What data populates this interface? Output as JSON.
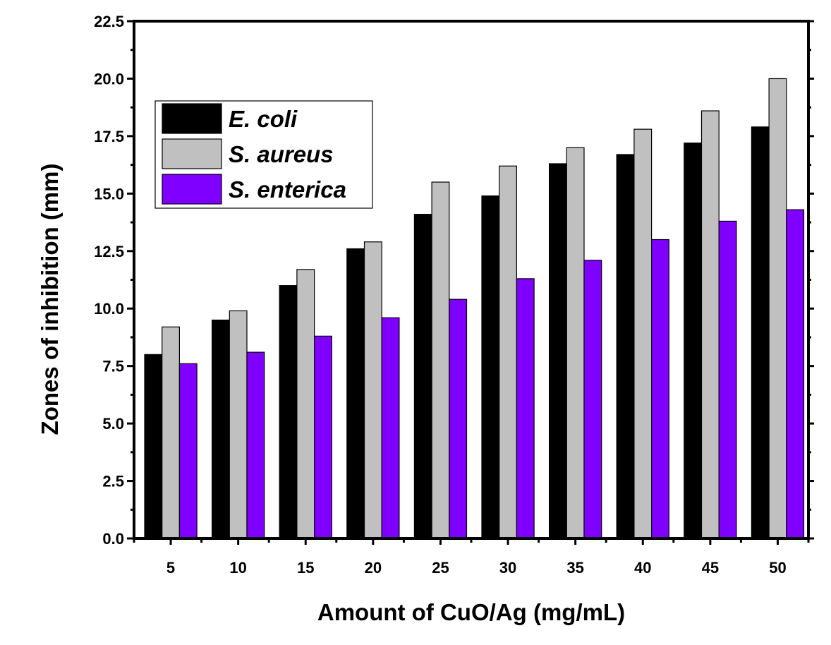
{
  "chart_data": {
    "type": "bar",
    "xlabel": "Amount of CuO/Ag (mg/mL)",
    "ylabel": "Zones of inhibition (mm)",
    "categories": [
      "5",
      "10",
      "15",
      "20",
      "25",
      "30",
      "35",
      "40",
      "45",
      "50"
    ],
    "ylim": [
      0,
      22.5
    ],
    "yticks": [
      "0.0",
      "2.5",
      "5.0",
      "7.5",
      "10.0",
      "12.5",
      "15.0",
      "17.5",
      "20.0",
      "22.5"
    ],
    "legend_position": "top-left",
    "grid": false,
    "series": [
      {
        "name": "E. coli",
        "color": "#000000",
        "values": [
          8.0,
          9.5,
          11.0,
          12.6,
          14.1,
          14.9,
          16.3,
          16.7,
          17.2,
          17.9
        ]
      },
      {
        "name": "S. aureus",
        "color": "#c0c0c0",
        "values": [
          9.2,
          9.9,
          11.7,
          12.9,
          15.5,
          16.2,
          17.0,
          17.8,
          18.6,
          20.0
        ]
      },
      {
        "name": "S. enterica",
        "color": "#8000ff",
        "values": [
          7.6,
          8.1,
          8.8,
          9.6,
          10.4,
          11.3,
          12.1,
          13.0,
          13.8,
          14.3
        ]
      }
    ]
  }
}
